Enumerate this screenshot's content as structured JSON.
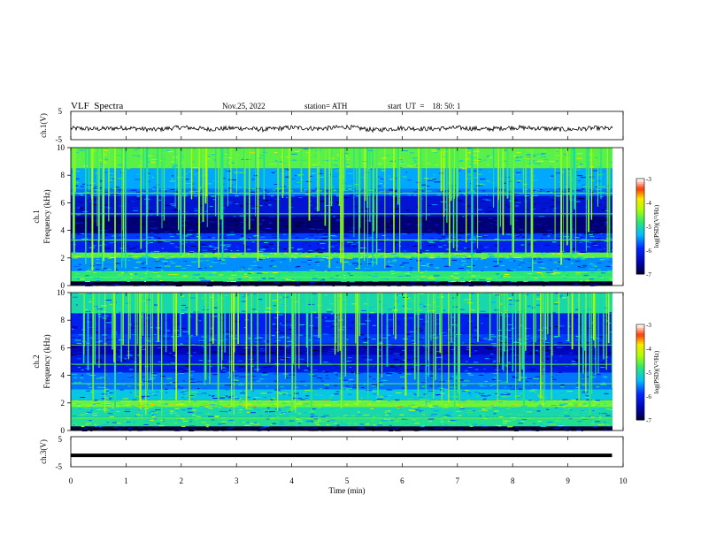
{
  "header": {
    "title": "VLF  Spectra",
    "date": "Nov.25, 2022",
    "station": "station= ATH",
    "start": "start  UT  =    18: 50: 1"
  },
  "colors": {
    "trace": "#000000",
    "axis": "#000000",
    "background": "#ffffff"
  },
  "chart_data": [
    {
      "type": "line",
      "panel": "ch1-waveform",
      "ylabel": "ch.1(V)",
      "ylim": [
        -5,
        5
      ],
      "yticks": [
        "5",
        "-5"
      ],
      "x": [
        0,
        0.5,
        1,
        1.5,
        2,
        2.5,
        3,
        3.5,
        4,
        4.5,
        5,
        5.5,
        6,
        6.5,
        7,
        7.5,
        8,
        8.5,
        9,
        9.5,
        9.8
      ],
      "values": [
        -1.0,
        -1.2,
        -0.8,
        -1.5,
        -0.6,
        -1.3,
        -0.9,
        -1.4,
        -0.7,
        -1.1,
        -0.5,
        -1.6,
        -0.9,
        -1.2,
        -0.8,
        -1.3,
        -0.7,
        -1.0,
        -1.4,
        -0.9,
        -1.1
      ]
    },
    {
      "type": "heatmap",
      "panel": "ch1-spectrogram",
      "ylabel_left": "ch.1",
      "ylabel": "Frequency  (kHz)",
      "ylim": [
        0,
        10
      ],
      "yticks": [
        "0",
        "2",
        "4",
        "6",
        "8",
        "10"
      ],
      "xlim": [
        0,
        10
      ],
      "colorbar": {
        "label": "log(PSD)(V²/Hz)",
        "range": [
          -7,
          -3
        ],
        "ticks": [
          "-3",
          "-4",
          "-5",
          "-6",
          "-7"
        ]
      },
      "bands_khz": [
        {
          "lo": 0.0,
          "hi": 0.3,
          "level": -7
        },
        {
          "lo": 0.3,
          "hi": 1.0,
          "level": -4.8
        },
        {
          "lo": 1.0,
          "hi": 2.0,
          "level": -5.5
        },
        {
          "lo": 2.0,
          "hi": 2.4,
          "level": -4.6
        },
        {
          "lo": 2.4,
          "hi": 3.2,
          "level": -6.0
        },
        {
          "lo": 3.2,
          "hi": 3.8,
          "level": -5.8
        },
        {
          "lo": 3.8,
          "hi": 5.0,
          "level": -6.7
        },
        {
          "lo": 5.0,
          "hi": 6.5,
          "level": -6.2
        },
        {
          "lo": 6.5,
          "hi": 7.0,
          "level": -5.6
        },
        {
          "lo": 7.0,
          "hi": 8.5,
          "level": -5.4
        },
        {
          "lo": 8.5,
          "hi": 10.0,
          "level": -4.6
        }
      ],
      "lines_khz": [
        6.7,
        5.2,
        3.3,
        2.2,
        1.0,
        0.6
      ]
    },
    {
      "type": "heatmap",
      "panel": "ch2-spectrogram",
      "ylabel_left": "ch.2",
      "ylabel": "Frequency  (kHz)",
      "ylim": [
        0,
        10
      ],
      "yticks": [
        "0",
        "2",
        "4",
        "6",
        "8",
        "10"
      ],
      "xlim": [
        0,
        10
      ],
      "colorbar": {
        "label": "log(PSD)(V²/Hz)",
        "range": [
          -7,
          -3
        ],
        "ticks": [
          "-3",
          "-4",
          "-5",
          "-6",
          "-7"
        ]
      },
      "bands_khz": [
        {
          "lo": 0.0,
          "hi": 0.3,
          "level": -7
        },
        {
          "lo": 0.3,
          "hi": 1.0,
          "level": -4.9
        },
        {
          "lo": 1.0,
          "hi": 1.7,
          "level": -5.0
        },
        {
          "lo": 1.7,
          "hi": 2.2,
          "level": -4.5
        },
        {
          "lo": 2.2,
          "hi": 3.0,
          "level": -5.2
        },
        {
          "lo": 3.0,
          "hi": 4.2,
          "level": -5.6
        },
        {
          "lo": 4.2,
          "hi": 5.5,
          "level": -6.1
        },
        {
          "lo": 5.5,
          "hi": 6.3,
          "level": -6.4
        },
        {
          "lo": 6.3,
          "hi": 7.0,
          "level": -5.8
        },
        {
          "lo": 7.0,
          "hi": 8.5,
          "level": -6.0
        },
        {
          "lo": 8.5,
          "hi": 10.0,
          "level": -5.0
        }
      ],
      "lines_khz": [
        6.2,
        4.8,
        3.4,
        2.0,
        0.9
      ]
    },
    {
      "type": "line",
      "panel": "ch3-waveform",
      "ylabel": "ch.3(V)",
      "ylim": [
        -5,
        5
      ],
      "yticks": [
        "5",
        "-5"
      ],
      "x": [
        0,
        9.8
      ],
      "values": [
        -1.2,
        -1.2
      ]
    }
  ],
  "xaxis": {
    "label": "Time  (min)",
    "ticks": [
      "0",
      "1",
      "2",
      "3",
      "4",
      "5",
      "6",
      "7",
      "8",
      "9",
      "10"
    ],
    "xlim": [
      0,
      10
    ]
  }
}
